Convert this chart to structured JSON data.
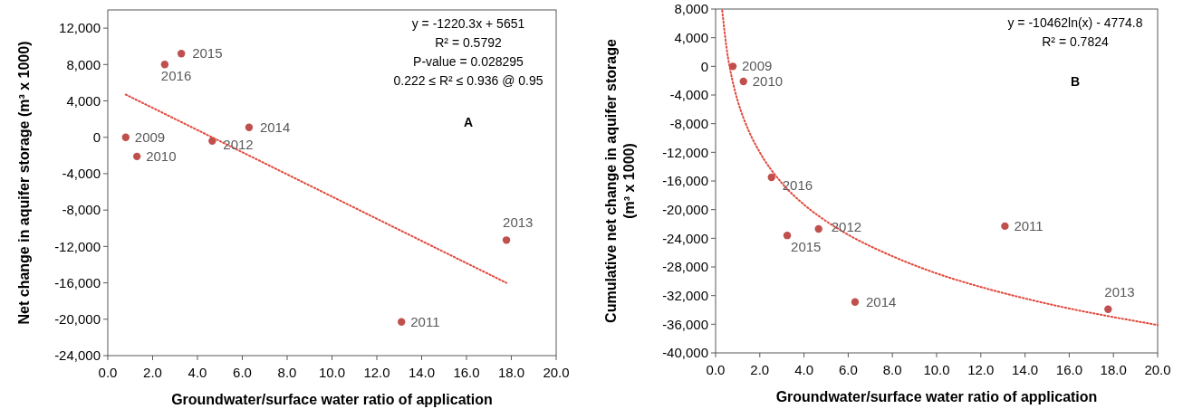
{
  "chart_data": [
    {
      "type": "scatter",
      "xlabel": "Groundwater/surface water ratio of application",
      "ylabel": "Net change in aquifer storage (m³ x 1000)",
      "xlim": [
        0,
        20
      ],
      "xticks": [
        {
          "value": 0,
          "label": "0.0"
        },
        {
          "value": 2,
          "label": "2.0"
        },
        {
          "value": 4,
          "label": "4.0"
        },
        {
          "value": 6,
          "label": "6.0"
        },
        {
          "value": 8,
          "label": "8.0"
        },
        {
          "value": 10,
          "label": "10.0"
        },
        {
          "value": 12,
          "label": "12.0"
        },
        {
          "value": 14,
          "label": "14.0"
        },
        {
          "value": 16,
          "label": "16.0"
        },
        {
          "value": 18,
          "label": "18.0"
        },
        {
          "value": 20,
          "label": "20.0"
        }
      ],
      "ylim": [
        -24000,
        14000
      ],
      "yticks": [
        {
          "value": -24000,
          "label": "-24,000"
        },
        {
          "value": -20000,
          "label": "-20,000"
        },
        {
          "value": -16000,
          "label": "-16,000"
        },
        {
          "value": -12000,
          "label": "-12,000"
        },
        {
          "value": -8000,
          "label": "-8,000"
        },
        {
          "value": -4000,
          "label": "-4,000"
        },
        0,
        {
          "value": 4000,
          "label": "4,000"
        },
        {
          "value": 8000,
          "label": "8,000"
        },
        {
          "value": 12000,
          "label": "12,000"
        }
      ],
      "grid": false,
      "series": [
        {
          "marker": "circle",
          "color": "#c0504d",
          "x": [
            0.8,
            1.3,
            13.1,
            4.66,
            17.78,
            6.3,
            3.28,
            2.54
          ],
          "values": [
            0,
            -2100,
            -20300,
            -400,
            -11300,
            1100,
            9200,
            8000
          ]
        },
        {
          "type": "line",
          "color": "#e0493c",
          "line_style": "dotted",
          "x": [
            0.8,
            17.78
          ],
          "values": [
            4700,
            -16000
          ]
        }
      ],
      "annotations": [
        "y = -1220.3x + 5651",
        "R² = 0.5792",
        "P-value = 0.028295",
        "0.222 ≤ R² ≤ 0.936 @ 0.95",
        "A",
        {
          "text": "2009",
          "x": 0.8,
          "y": 0
        },
        {
          "text": "2010",
          "x": 1.3,
          "y": -2100
        },
        {
          "text": "2011",
          "x": 13.1,
          "y": -20300
        },
        {
          "text": "2012",
          "x": 4.66,
          "y": -400
        },
        {
          "text": "2013",
          "x": 17.78,
          "y": -11300
        },
        {
          "text": "2014",
          "x": 6.3,
          "y": 1100
        },
        {
          "text": "2015",
          "x": 3.28,
          "y": 9200
        },
        {
          "text": "2016",
          "x": 2.54,
          "y": 8000
        }
      ]
    },
    {
      "type": "scatter",
      "xlabel": "Groundwater/surface water ratio of application",
      "ylabel": "Cumulative net change in aquifer storage (m³ x 1000)",
      "xlim": [
        0,
        20
      ],
      "xticks": [
        {
          "value": 0,
          "label": "0.0"
        },
        {
          "value": 2,
          "label": "2.0"
        },
        {
          "value": 4,
          "label": "4.0"
        },
        {
          "value": 6,
          "label": "6.0"
        },
        {
          "value": 8,
          "label": "8.0"
        },
        {
          "value": 10,
          "label": "10.0"
        },
        {
          "value": 12,
          "label": "12.0"
        },
        {
          "value": 14,
          "label": "14.0"
        },
        {
          "value": 16,
          "label": "16.0"
        },
        {
          "value": 18,
          "label": "18.0"
        },
        {
          "value": 20,
          "label": "20.0"
        }
      ],
      "ylim": [
        -40000,
        8000
      ],
      "yticks": [
        {
          "value": -40000,
          "label": "-40,000"
        },
        {
          "value": -36000,
          "label": "-36,000"
        },
        {
          "value": -32000,
          "label": "-32,000"
        },
        {
          "value": -28000,
          "label": "-28,000"
        },
        {
          "value": -24000,
          "label": "-24,000"
        },
        {
          "value": -20000,
          "label": "-20,000"
        },
        {
          "value": -16000,
          "label": "-16,000"
        },
        {
          "value": -12000,
          "label": "-12,000"
        },
        {
          "value": -8000,
          "label": "-8,000"
        },
        {
          "value": -4000,
          "label": "-4,000"
        },
        0,
        {
          "value": 4000,
          "label": "4,000"
        },
        {
          "value": 8000,
          "label": "8,000"
        }
      ],
      "grid": false,
      "series": [
        {
          "marker": "circle",
          "color": "#c0504d",
          "x": [
            0.78,
            1.26,
            13.09,
            4.66,
            17.76,
            6.31,
            3.24,
            2.53
          ],
          "values": [
            0,
            -2100,
            -22300,
            -22700,
            -33900,
            -32900,
            -23600,
            -15500
          ]
        },
        {
          "type": "line",
          "color": "#e0493c",
          "line_style": "dotted",
          "x": [
            0.3,
            0.5,
            0.75,
            1,
            1.5,
            2,
            3,
            4,
            5,
            6,
            8,
            10,
            12,
            14,
            16,
            18,
            20
          ],
          "values": [
            7800,
            2500,
            -1800,
            -4800,
            -9000,
            -12000,
            -16300,
            -19300,
            -21600,
            -23500,
            -26500,
            -28900,
            -30800,
            -32400,
            -33800,
            -35000,
            -36100
          ]
        }
      ],
      "annotations": [
        "y = -10462ln(x) - 4774.8",
        "R² = 0.7824",
        "B",
        {
          "text": "2009",
          "x": 0.78,
          "y": 0
        },
        {
          "text": "2010",
          "x": 1.26,
          "y": -2100
        },
        {
          "text": "2011",
          "x": 13.09,
          "y": -22300
        },
        {
          "text": "2012",
          "x": 4.66,
          "y": -22700
        },
        {
          "text": "2013",
          "x": 17.76,
          "y": -33900
        },
        {
          "text": "2014",
          "x": 6.31,
          "y": -32900
        },
        {
          "text": "2015",
          "x": 3.24,
          "y": -23600
        },
        {
          "text": "2016",
          "x": 2.53,
          "y": -15500
        }
      ]
    }
  ]
}
